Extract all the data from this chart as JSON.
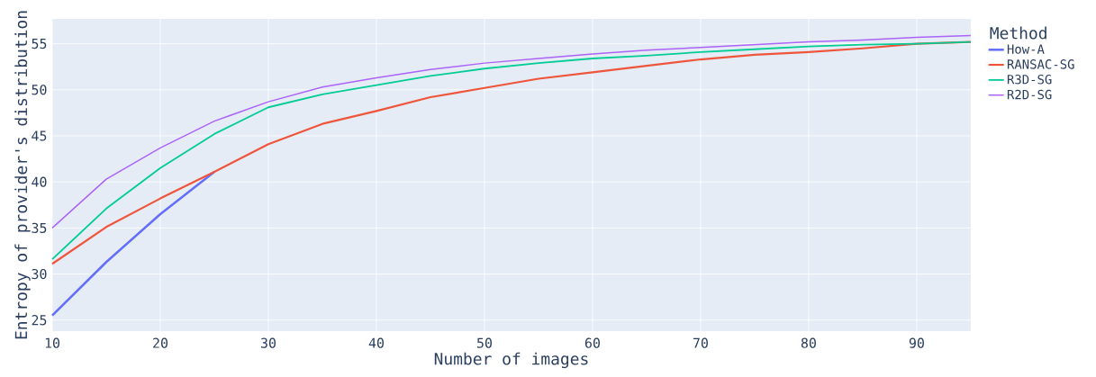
{
  "chart_data": {
    "type": "line",
    "xlabel": "Number of images",
    "ylabel": "Entropy of provider's distribution",
    "legend_title": "Method",
    "x": [
      10,
      15,
      20,
      25,
      30,
      35,
      40,
      45,
      50,
      55,
      60,
      65,
      70,
      75,
      80,
      85,
      90,
      95
    ],
    "series": [
      {
        "name": "How-A",
        "color": "#636efa",
        "x": [
          10,
          15,
          20,
          25
        ],
        "values": [
          25.5,
          31.3,
          36.5,
          41.1
        ]
      },
      {
        "name": "RANSAC-SG",
        "color": "#ef553b",
        "values": [
          31.1,
          35.1,
          38.2,
          41.1,
          44.1,
          46.3,
          47.7,
          49.2,
          50.2,
          51.2,
          51.9,
          52.6,
          53.3,
          53.8,
          54.1,
          54.5,
          55.0,
          55.2
        ]
      },
      {
        "name": "R3D-SG",
        "color": "#00cc96",
        "values": [
          31.6,
          37.1,
          41.5,
          45.2,
          48.1,
          49.5,
          50.5,
          51.5,
          52.3,
          52.9,
          53.4,
          53.7,
          54.1,
          54.4,
          54.7,
          54.9,
          55.0,
          55.2
        ]
      },
      {
        "name": "R2D-SG",
        "color": "#ab63fa",
        "values": [
          35.0,
          40.3,
          43.7,
          46.6,
          48.7,
          50.3,
          51.3,
          52.2,
          52.9,
          53.4,
          53.9,
          54.3,
          54.6,
          54.9,
          55.2,
          55.4,
          55.7,
          55.9
        ]
      }
    ],
    "xlim": [
      10,
      95
    ],
    "ylim": [
      23.8,
      57.7
    ],
    "xticks": [
      10,
      20,
      30,
      40,
      50,
      60,
      70,
      80,
      90
    ],
    "yticks": [
      25,
      30,
      35,
      40,
      45,
      50,
      55
    ],
    "grid": true,
    "legend": "top right"
  }
}
